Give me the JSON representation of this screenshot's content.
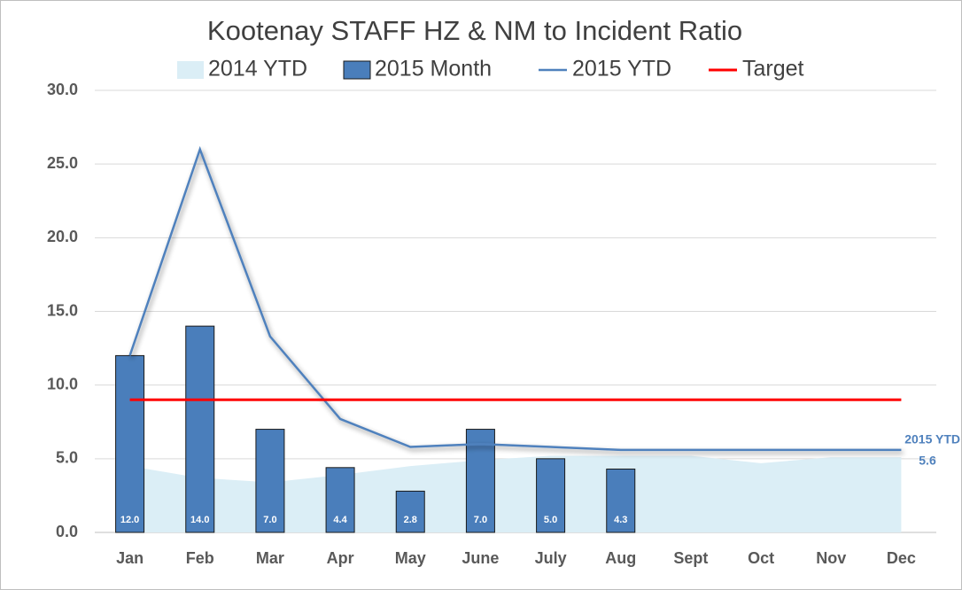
{
  "chart_data": {
    "type": "bar",
    "title": "Kootenay  STAFF HZ & NM to Incident Ratio",
    "categories": [
      "Jan",
      "Feb",
      "Mar",
      "Apr",
      "May",
      "June",
      "July",
      "Aug",
      "Sept",
      "Oct",
      "Nov",
      "Dec"
    ],
    "series": [
      {
        "name": "2014 YTD",
        "type": "area",
        "color": "#dbeef6",
        "values": [
          4.5,
          3.7,
          3.4,
          3.9,
          4.5,
          4.9,
          5.2,
          5.2,
          5.2,
          4.7,
          5.1,
          5.1
        ]
      },
      {
        "name": "2015 Month",
        "type": "bar",
        "color": "#4a7ebb",
        "values": [
          12.0,
          14.0,
          7.0,
          4.4,
          2.8,
          7.0,
          5.0,
          4.3,
          null,
          null,
          null,
          null
        ],
        "value_labels": [
          "12.0",
          "14.0",
          "7.0",
          "4.4",
          "2.8",
          "7.0",
          "5.0",
          "4.3",
          null,
          null,
          null,
          null
        ]
      },
      {
        "name": "2015 YTD",
        "type": "line",
        "color": "#4f81bd",
        "values": [
          12.0,
          26.0,
          13.3,
          7.7,
          5.8,
          6.0,
          5.8,
          5.6,
          5.6,
          5.6,
          5.6,
          5.6
        ]
      },
      {
        "name": "Target",
        "type": "line",
        "color": "#ff0000",
        "values": [
          9.0,
          9.0,
          9.0,
          9.0,
          9.0,
          9.0,
          9.0,
          9.0,
          9.0,
          9.0,
          9.0,
          9.0
        ]
      }
    ],
    "ylim": [
      0,
      30
    ],
    "yticks": [
      {
        "value": 0,
        "label": "0.0"
      },
      {
        "value": 5,
        "label": "5.0"
      },
      {
        "value": 10,
        "label": "10.0"
      },
      {
        "value": 15,
        "label": "15.0"
      },
      {
        "value": 20,
        "label": "20.0"
      },
      {
        "value": 25,
        "label": "25.0"
      },
      {
        "value": 30,
        "label": "30.0"
      }
    ],
    "grid": true,
    "legend": "top",
    "end_label_value": "5.6"
  }
}
